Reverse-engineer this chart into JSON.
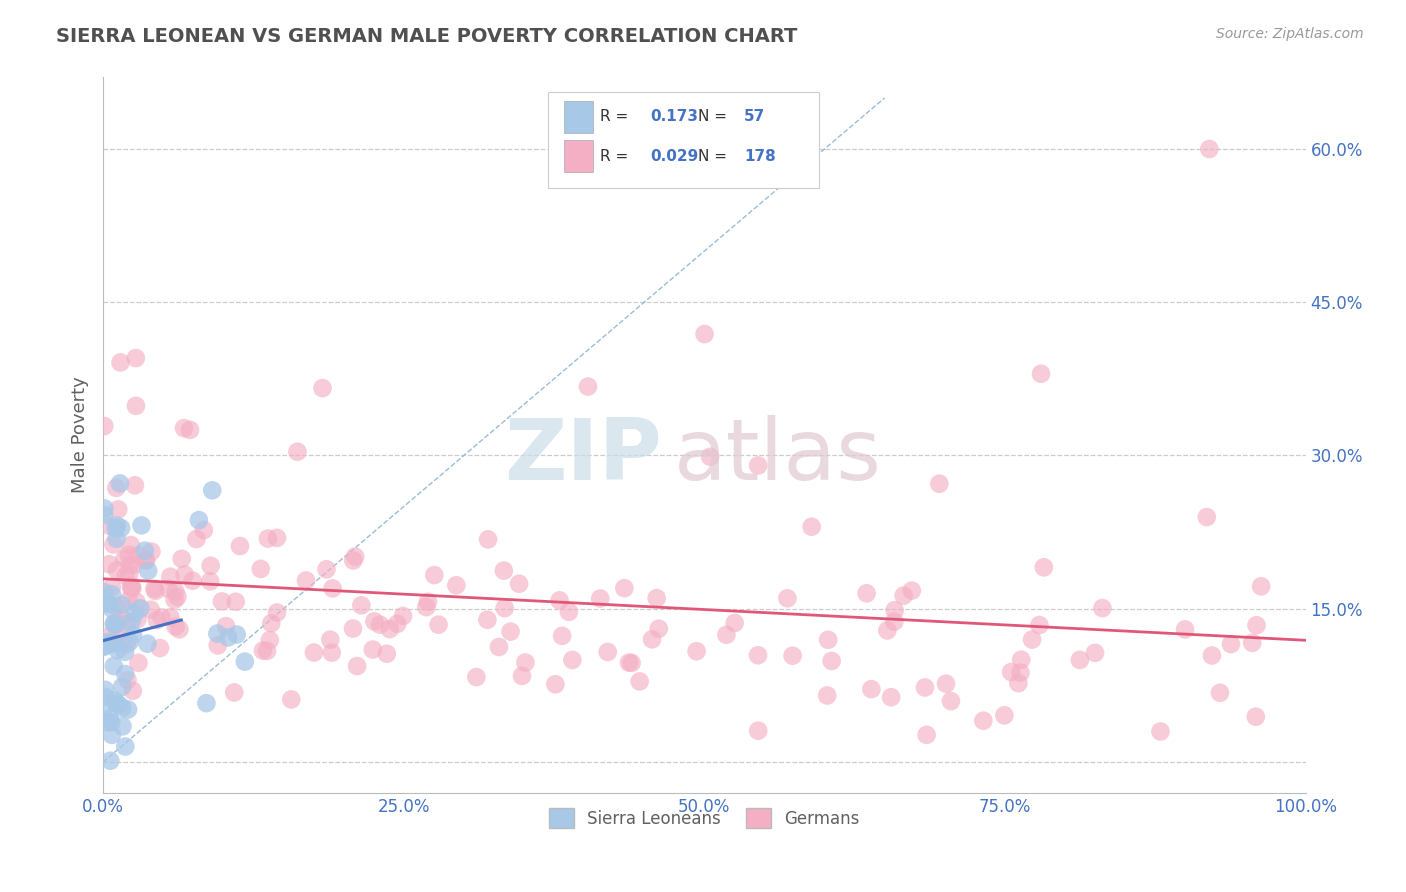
{
  "title": "SIERRA LEONEAN VS GERMAN MALE POVERTY CORRELATION CHART",
  "source_text": "Source: ZipAtlas.com",
  "ylabel": "Male Poverty",
  "xlim": [
    0.0,
    1.0
  ],
  "ylim": [
    -0.03,
    0.67
  ],
  "yticks": [
    0.0,
    0.15,
    0.3,
    0.45,
    0.6
  ],
  "ytick_labels": [
    "",
    "15.0%",
    "30.0%",
    "45.0%",
    "60.0%"
  ],
  "xticks": [
    0.0,
    0.25,
    0.5,
    0.75,
    1.0
  ],
  "xtick_labels": [
    "0.0%",
    "25.0%",
    "50.0%",
    "75.0%",
    "100.0%"
  ],
  "sierra_color": "#a8c8e8",
  "german_color": "#f4afc4",
  "sierra_R": 0.173,
  "sierra_N": 57,
  "german_R": 0.029,
  "german_N": 178,
  "legend_color": "#4472c4",
  "ref_line_color": "#8ab0d0",
  "sierra_trend_color": "#4472c4",
  "german_trend_color": "#e05878",
  "background_color": "#ffffff",
  "grid_color": "#cccccc",
  "title_color": "#505050",
  "axis_label_color": "#606060",
  "tick_color": "#4472c4",
  "watermark_zip_color": "#ccdde8",
  "watermark_atlas_color": "#e0c8d0"
}
